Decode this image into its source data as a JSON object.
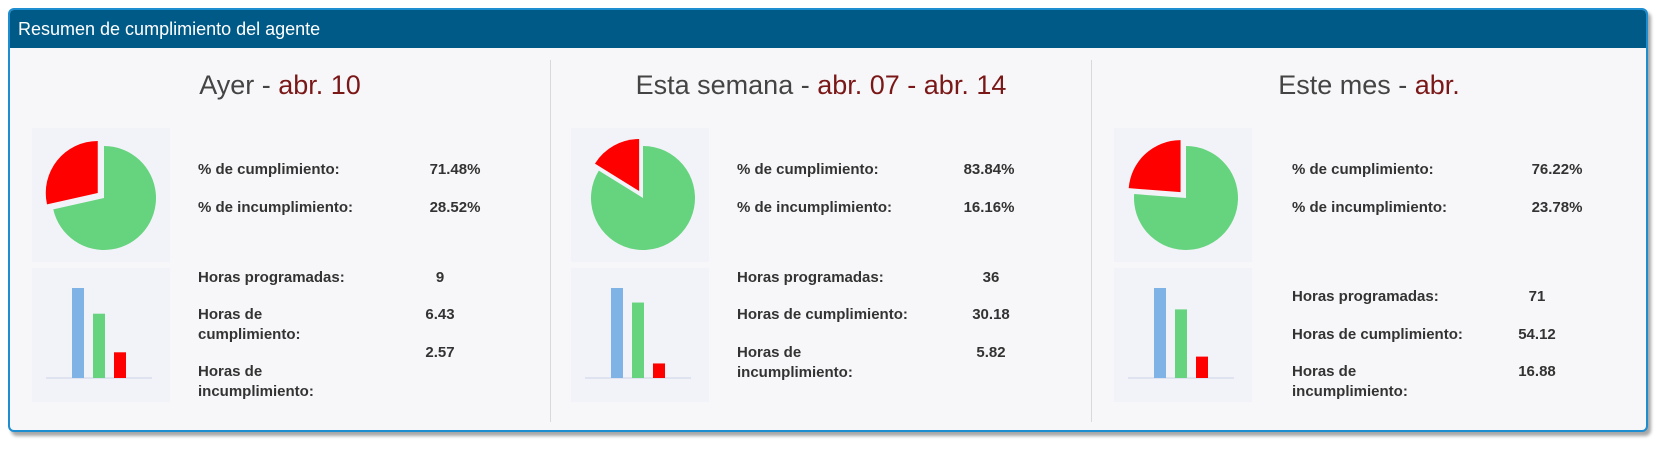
{
  "panel": {
    "title": "Resumen de cumplimiento del agente"
  },
  "sections": [
    {
      "title_label": "Ayer",
      "separator": " - ",
      "date_label": "abr. 10",
      "compliance_label": "% de cumplimiento:",
      "compliance_value": "71.48%",
      "noncompliance_label": "% de incumplimiento:",
      "noncompliance_value": "28.52%",
      "scheduled_label": "Horas programadas:",
      "scheduled_value": "9",
      "compliance_hours_label": "Horas de cumplimiento:",
      "compliance_hours_value": "6.43",
      "noncompliance_hours_label": "Horas de incumplimiento:",
      "noncompliance_hours_value": "2.57"
    },
    {
      "title_label": "Esta semana",
      "separator": " - ",
      "date_label": "abr. 07 - abr. 14",
      "compliance_label": "% de cumplimiento:",
      "compliance_value": "83.84%",
      "noncompliance_label": "% de incumplimiento:",
      "noncompliance_value": "16.16%",
      "scheduled_label": "Horas programadas:",
      "scheduled_value": "36",
      "compliance_hours_label": "Horas de cumplimiento:",
      "compliance_hours_value": "30.18",
      "noncompliance_hours_label": "Horas de incumplimiento:",
      "noncompliance_hours_value": "5.82"
    },
    {
      "title_label": "Este mes",
      "separator": " - ",
      "date_label": "abr.",
      "compliance_label": "% de cumplimiento:",
      "compliance_value": "76.22%",
      "noncompliance_label": "% de incumplimiento:",
      "noncompliance_value": "23.78%",
      "scheduled_label": "Horas programadas:",
      "scheduled_value": "71",
      "compliance_hours_label": "Horas de cumplimiento:",
      "compliance_hours_value": "54.12",
      "noncompliance_hours_label": "Horas de incumplimiento:",
      "noncompliance_hours_value": "16.88"
    }
  ],
  "colors": {
    "header_bg": "#005a87",
    "compliance": "#66d37e",
    "noncompliance": "#ff0000",
    "scheduled": "#7fb2e5",
    "date_text": "#7a1717"
  },
  "chart_data": [
    {
      "type": "pie",
      "categories": [
        "% de cumplimiento",
        "% de incumplimiento"
      ],
      "values": [
        71.48,
        28.52
      ]
    },
    {
      "type": "bar",
      "categories": [
        "Horas programadas",
        "Horas de cumplimiento",
        "Horas de incumplimiento"
      ],
      "values": [
        9,
        6.43,
        2.57
      ]
    },
    {
      "type": "pie",
      "categories": [
        "% de cumplimiento",
        "% de incumplimiento"
      ],
      "values": [
        83.84,
        16.16
      ]
    },
    {
      "type": "bar",
      "categories": [
        "Horas programadas",
        "Horas de cumplimiento",
        "Horas de incumplimiento"
      ],
      "values": [
        36,
        30.18,
        5.82
      ]
    },
    {
      "type": "pie",
      "categories": [
        "% de cumplimiento",
        "% de incumplimiento"
      ],
      "values": [
        76.22,
        23.78
      ]
    },
    {
      "type": "bar",
      "categories": [
        "Horas programadas",
        "Horas de cumplimiento",
        "Horas de incumplimiento"
      ],
      "values": [
        71,
        54.12,
        16.88
      ]
    }
  ]
}
